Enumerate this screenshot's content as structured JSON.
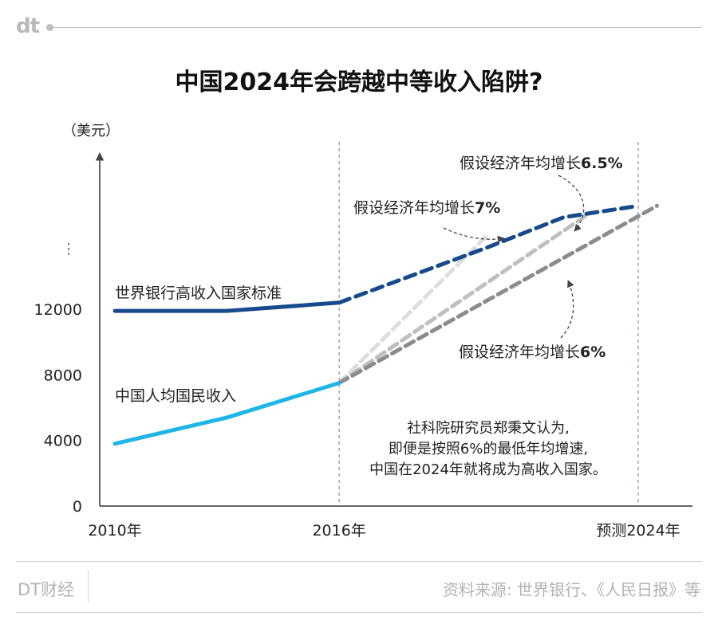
{
  "header": {
    "logo": "dt"
  },
  "title": "中国2024年会跨越中等收入陷阱?",
  "footer": {
    "left": "DT财经",
    "right": "资料来源: 世界银行、《人民日报》等"
  },
  "chart_data": {
    "type": "line",
    "title": "中国2024年会跨越中等收入陷阱?",
    "ylabel": "（美元）",
    "yticks": [
      {
        "value": 0,
        "label": "0"
      },
      {
        "value": 4000,
        "label": "4000"
      },
      {
        "value": 8000,
        "label": "8000"
      },
      {
        "value": 12000,
        "label": "12000"
      }
    ],
    "ybreak": "⋮",
    "xticks": [
      {
        "x": 2010,
        "label": "2010年"
      },
      {
        "x": 2016,
        "label": "2016年"
      },
      {
        "x": 2024,
        "label": "预测2024年"
      }
    ],
    "series": [
      {
        "name": "世界银行高收入国家标准",
        "color": "#174a8b",
        "actual": [
          [
            2010,
            11900
          ],
          [
            2013,
            11900
          ],
          [
            2016,
            12400
          ]
        ],
        "projection": [
          [
            2016,
            12400
          ],
          [
            2020,
            15800
          ],
          [
            2022,
            17600
          ],
          [
            2024,
            18300
          ]
        ]
      },
      {
        "name": "中国人均国民收入",
        "color": "#1fb6e6",
        "actual": [
          [
            2010,
            3800
          ],
          [
            2013,
            5400
          ],
          [
            2016,
            7500
          ]
        ],
        "projections": [
          {
            "label": "假设经济年均增长7%",
            "color": "#dedede",
            "points": [
              [
                2016,
                7500
              ],
              [
                2020,
                16600
              ]
            ]
          },
          {
            "label": "假设经济年均增长6.5%",
            "color": "#bfbfbf",
            "points": [
              [
                2016,
                7500
              ],
              [
                2022.6,
                17700
              ]
            ]
          },
          {
            "label": "假设经济年均增长6%",
            "color": "#8c8c8c",
            "points": [
              [
                2016,
                7500
              ],
              [
                2024.5,
                18300
              ]
            ]
          }
        ]
      }
    ],
    "annotations": {
      "g7": "假设经济年均增长7%",
      "g65": "假设经济年均增长6.5%",
      "g6": "假设经济年均增长6%",
      "note": [
        "社科院研究员郑秉文认为,",
        "即便是按照6%的最低年均增速,",
        "中国在2024年就将成为高收入国家。"
      ]
    },
    "xlim": [
      2010,
      2024.6
    ],
    "vlines": [
      2016,
      2024
    ]
  }
}
